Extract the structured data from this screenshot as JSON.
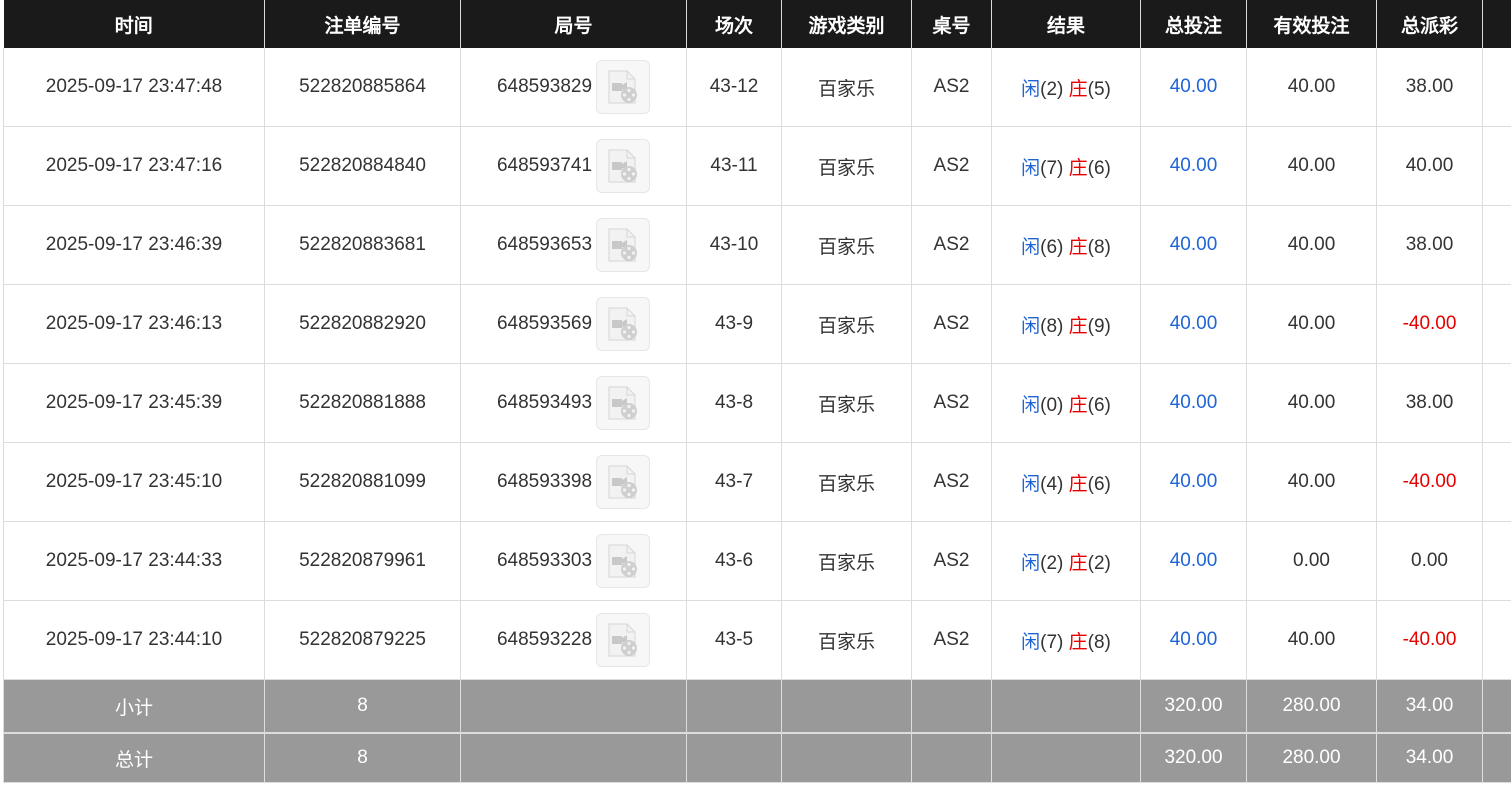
{
  "headers": [
    "时间",
    "注单编号",
    "局号",
    "场次",
    "游戏类别",
    "桌号",
    "结果",
    "总投注",
    "有效投注",
    "总派彩"
  ],
  "result_labels": {
    "player": "闲",
    "banker": "庄"
  },
  "rows": [
    {
      "time": "2025-09-17 23:47:48",
      "bet_id": "522820885864",
      "round": "648593829",
      "shoe": "43-12",
      "game": "百家乐",
      "table": "AS2",
      "p": "(2)",
      "b": "(5)",
      "total": "40.00",
      "valid": "40.00",
      "payout": "38.00",
      "neg": false
    },
    {
      "time": "2025-09-17 23:47:16",
      "bet_id": "522820884840",
      "round": "648593741",
      "shoe": "43-11",
      "game": "百家乐",
      "table": "AS2",
      "p": "(7)",
      "b": "(6)",
      "total": "40.00",
      "valid": "40.00",
      "payout": "40.00",
      "neg": false
    },
    {
      "time": "2025-09-17 23:46:39",
      "bet_id": "522820883681",
      "round": "648593653",
      "shoe": "43-10",
      "game": "百家乐",
      "table": "AS2",
      "p": "(6)",
      "b": "(8)",
      "total": "40.00",
      "valid": "40.00",
      "payout": "38.00",
      "neg": false
    },
    {
      "time": "2025-09-17 23:46:13",
      "bet_id": "522820882920",
      "round": "648593569",
      "shoe": "43-9",
      "game": "百家乐",
      "table": "AS2",
      "p": "(8)",
      "b": "(9)",
      "total": "40.00",
      "valid": "40.00",
      "payout": "-40.00",
      "neg": true
    },
    {
      "time": "2025-09-17 23:45:39",
      "bet_id": "522820881888",
      "round": "648593493",
      "shoe": "43-8",
      "game": "百家乐",
      "table": "AS2",
      "p": "(0)",
      "b": "(6)",
      "total": "40.00",
      "valid": "40.00",
      "payout": "38.00",
      "neg": false
    },
    {
      "time": "2025-09-17 23:45:10",
      "bet_id": "522820881099",
      "round": "648593398",
      "shoe": "43-7",
      "game": "百家乐",
      "table": "AS2",
      "p": "(4)",
      "b": "(6)",
      "total": "40.00",
      "valid": "40.00",
      "payout": "-40.00",
      "neg": true
    },
    {
      "time": "2025-09-17 23:44:33",
      "bet_id": "522820879961",
      "round": "648593303",
      "shoe": "43-6",
      "game": "百家乐",
      "table": "AS2",
      "p": "(2)",
      "b": "(2)",
      "total": "40.00",
      "valid": "0.00",
      "payout": "0.00",
      "neg": false
    },
    {
      "time": "2025-09-17 23:44:10",
      "bet_id": "522820879225",
      "round": "648593228",
      "shoe": "43-5",
      "game": "百家乐",
      "table": "AS2",
      "p": "(7)",
      "b": "(8)",
      "total": "40.00",
      "valid": "40.00",
      "payout": "-40.00",
      "neg": true
    }
  ],
  "subtotal": {
    "label": "小计",
    "count": "8",
    "total": "320.00",
    "valid": "280.00",
    "payout": "34.00"
  },
  "grand_total": {
    "label": "总计",
    "count": "8",
    "total": "320.00",
    "valid": "280.00",
    "payout": "34.00"
  },
  "colors": {
    "blue": "#1f64d6",
    "red": "#e60000",
    "header_bg": "#1a1a1a",
    "summary_bg": "#999999"
  }
}
